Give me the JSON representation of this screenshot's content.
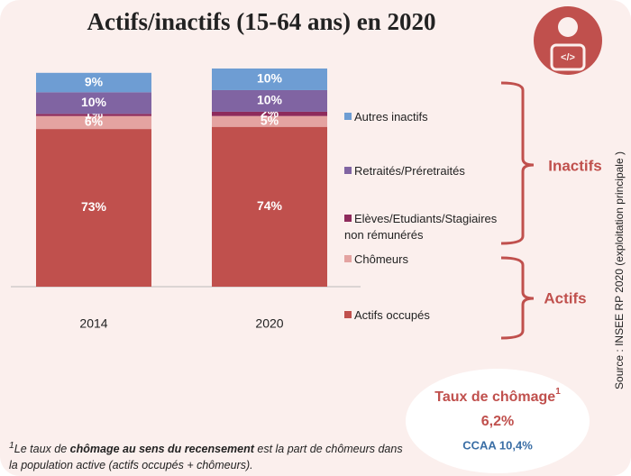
{
  "chart_data": {
    "type": "stacked_bar",
    "title": "Actifs/inactifs (15-64 ans) en 2020",
    "categories": [
      "2014",
      "2020"
    ],
    "series": [
      {
        "name": "Actifs occupés",
        "color": "#c0504d",
        "values": [
          73,
          74
        ],
        "value_labels": [
          "73%",
          "74%"
        ]
      },
      {
        "name": "Chômeurs",
        "color": "#e4a3a1",
        "values": [
          6,
          5
        ],
        "value_labels": [
          "6%",
          "5%"
        ]
      },
      {
        "name": "Elèves/Etudiants/Stagiaires non rémunérés",
        "color": "#8e2b5c",
        "values": [
          1,
          2
        ],
        "value_labels": [
          "1%",
          "2%"
        ]
      },
      {
        "name": "Retraités/Préretraités",
        "color": "#8064a2",
        "values": [
          10,
          10
        ],
        "value_labels": [
          "10%",
          "10%"
        ]
      },
      {
        "name": "Autres inactifs",
        "color": "#6e9dd3",
        "values": [
          9,
          10
        ],
        "value_labels": [
          "9%",
          "10%"
        ]
      }
    ],
    "groups": {
      "inactifs": "Inactifs",
      "actifs": "Actifs"
    },
    "source": "Source : INSEE RP 2020 (exploitation principale )",
    "highlight": {
      "title": "Taux de chômage",
      "note_mark": "1",
      "value": "6,2%",
      "comparison": "CCAA 10,4%"
    },
    "footnote": {
      "note_mark": "1",
      "before": "Le taux de ",
      "bold": "chômage au sens du recensement",
      "after": " est la part de chômeurs dans la population active (actifs occupés + chômeurs)."
    }
  }
}
